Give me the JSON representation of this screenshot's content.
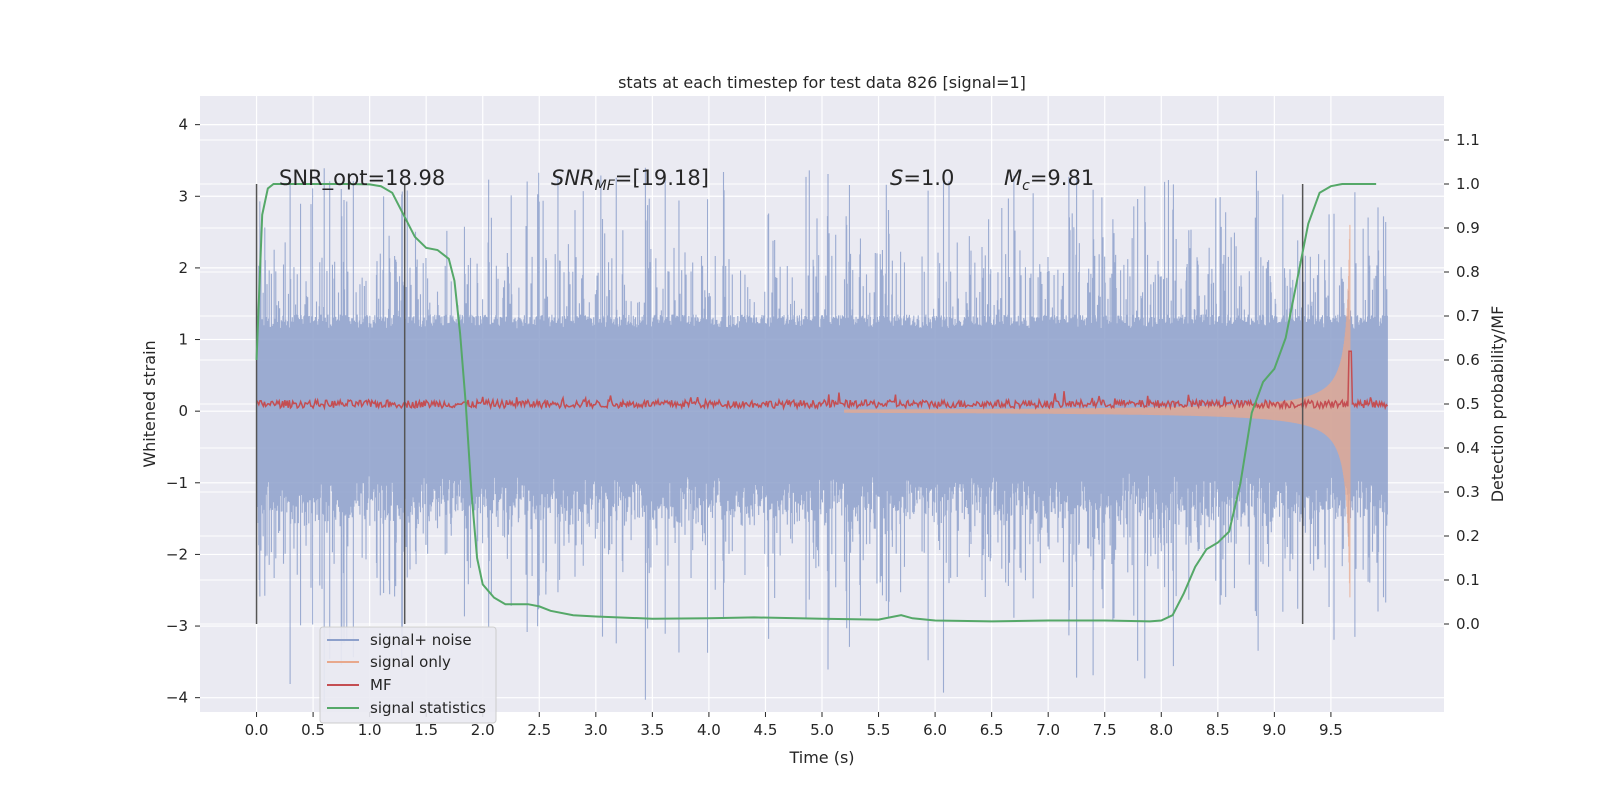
{
  "chart_data": {
    "type": "line",
    "title": "stats at each timestep for test data 826 [signal=1]",
    "xlabel": "Time (s)",
    "ylabel": "Whitened strain",
    "y2label": "Detection probability/MF",
    "xlim": [
      -0.5,
      10.5
    ],
    "ylim": [
      -4.2,
      4.4
    ],
    "y2lim": [
      -0.2,
      1.2
    ],
    "grid": true,
    "legend_position": "lower-left",
    "x_ticks": [
      "0.0",
      "0.5",
      "1.0",
      "1.5",
      "2.0",
      "2.5",
      "3.0",
      "3.5",
      "4.0",
      "4.5",
      "5.0",
      "5.5",
      "6.0",
      "6.5",
      "7.0",
      "7.5",
      "8.0",
      "8.5",
      "9.0",
      "9.5"
    ],
    "y_ticks": [
      "4",
      "3",
      "2",
      "1",
      "0",
      "−1",
      "−2",
      "−3",
      "−4"
    ],
    "y2_ticks": [
      "1.1",
      "1.0",
      "0.9",
      "0.8",
      "0.7",
      "0.6",
      "0.5",
      "0.4",
      "0.3",
      "0.2",
      "0.1",
      "0.0"
    ],
    "annotations": {
      "snr_opt": "SNR_opt=18.98",
      "snr_mf_base": "SNR",
      "snr_mf_sub": "MF",
      "snr_mf_value": "=[19.18]",
      "s_label": "S",
      "s_value": "=1.0",
      "mc_base": "M",
      "mc_sub": "c",
      "mc_value": "=9.81"
    },
    "vertical_markers_x": [
      0.0,
      1.31,
      9.25
    ],
    "series": [
      {
        "name": "signal+ noise",
        "color": "#8da0cb",
        "noise_amplitude": 1.35,
        "peak_amplitude": 4.0
      },
      {
        "name": "signal only",
        "color": "#e8a88c",
        "merger_time": 9.67,
        "peak_amplitude": 2.6
      },
      {
        "name": "MF",
        "color": "#c44e52",
        "peak_time": 9.67,
        "peak_value": 0.62,
        "baseline": 0.5
      },
      {
        "name": "signal statistics",
        "color": "#55a868",
        "x": [
          0.0,
          0.05,
          0.1,
          0.15,
          0.2,
          0.3,
          0.5,
          0.8,
          1.0,
          1.1,
          1.2,
          1.3,
          1.4,
          1.5,
          1.6,
          1.7,
          1.75,
          1.8,
          1.85,
          1.9,
          1.95,
          2.0,
          2.1,
          2.2,
          2.3,
          2.4,
          2.5,
          2.6,
          2.8,
          3.0,
          3.5,
          4.0,
          4.4,
          5.0,
          5.5,
          5.6,
          5.7,
          5.8,
          6.0,
          6.5,
          7.0,
          7.5,
          7.9,
          8.0,
          8.1,
          8.2,
          8.3,
          8.4,
          8.5,
          8.6,
          8.7,
          8.8,
          8.9,
          9.0,
          9.1,
          9.2,
          9.3,
          9.4,
          9.5,
          9.6,
          9.7,
          9.8,
          9.9
        ],
        "y": [
          0.6,
          0.93,
          0.99,
          1.0,
          1.0,
          1.0,
          1.0,
          1.0,
          0.999,
          0.995,
          0.98,
          0.93,
          0.88,
          0.855,
          0.85,
          0.83,
          0.78,
          0.66,
          0.5,
          0.3,
          0.15,
          0.09,
          0.06,
          0.045,
          0.045,
          0.045,
          0.04,
          0.03,
          0.02,
          0.017,
          0.012,
          0.013,
          0.015,
          0.012,
          0.01,
          0.015,
          0.02,
          0.013,
          0.008,
          0.006,
          0.008,
          0.008,
          0.006,
          0.008,
          0.02,
          0.07,
          0.13,
          0.17,
          0.185,
          0.21,
          0.32,
          0.48,
          0.55,
          0.58,
          0.65,
          0.78,
          0.91,
          0.98,
          0.995,
          1.0,
          1.0,
          1.0,
          1.0
        ]
      }
    ]
  }
}
